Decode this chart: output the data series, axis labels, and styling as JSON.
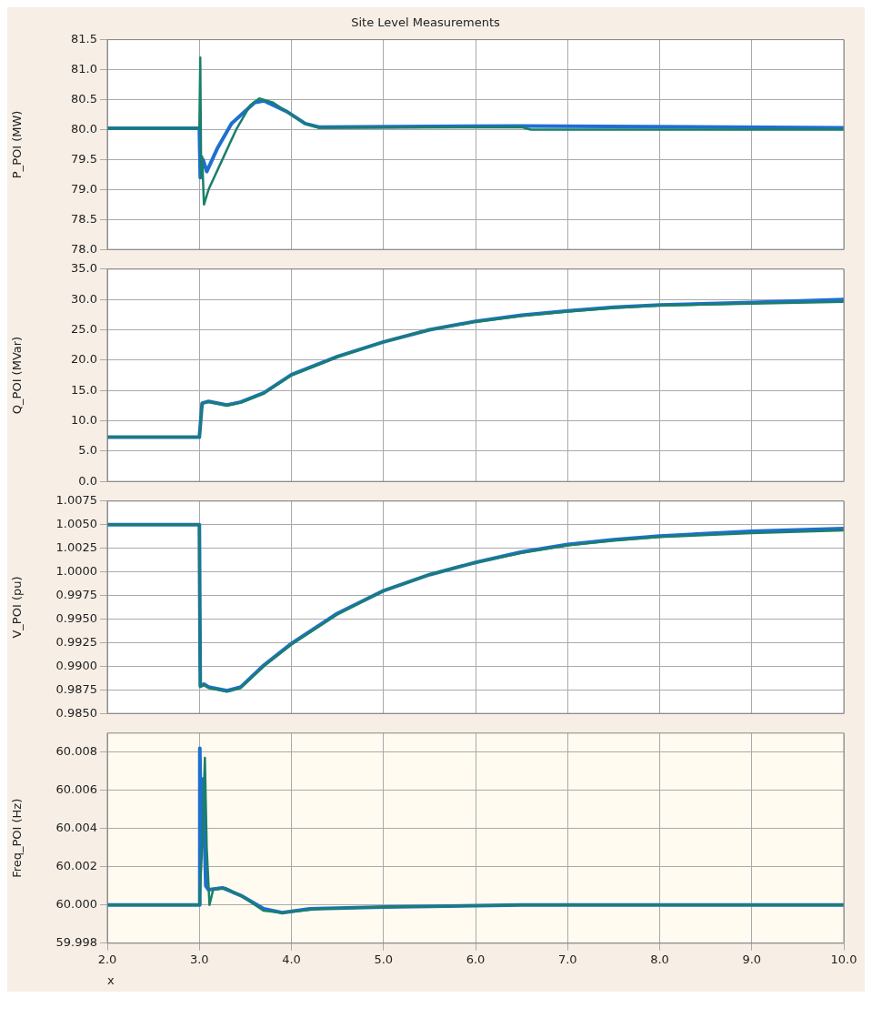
{
  "chart_data": [
    {
      "type": "line",
      "title": "Site Level Measurements",
      "ylabel": "P_POI (MW)",
      "xlim": [
        2,
        10
      ],
      "xticks": [
        {
          "value": 2,
          "label": null
        },
        {
          "value": 3,
          "label": null
        },
        {
          "value": 4,
          "label": null
        },
        {
          "value": 5,
          "label": null
        },
        {
          "value": 6,
          "label": null
        },
        {
          "value": 7,
          "label": null
        },
        {
          "value": 8,
          "label": null
        },
        {
          "value": 9,
          "label": null
        },
        {
          "value": 10,
          "label": null
        }
      ],
      "ylim": [
        78,
        81.5
      ],
      "yticks": [
        {
          "value": 78,
          "label": "78.0"
        },
        {
          "value": 78.5,
          "label": "78.5"
        },
        {
          "value": 79,
          "label": "79.0"
        },
        {
          "value": 79.5,
          "label": "79.5"
        },
        {
          "value": 80,
          "label": "80.0"
        },
        {
          "value": 80.5,
          "label": "80.5"
        },
        {
          "value": 81,
          "label": "81.0"
        },
        {
          "value": 81.5,
          "label": "81.5"
        }
      ],
      "grid": true,
      "tick_labels": "y",
      "legend": false,
      "marker": "none",
      "line_style": "solid",
      "series": [
        {
          "color": "#1f6fd1",
          "x": [
            2,
            3,
            3.01,
            3.04,
            3.08,
            3.2,
            3.35,
            3.6,
            3.7,
            3.95,
            4.15,
            4.3,
            6.5,
            10
          ],
          "values": [
            80.02,
            80.02,
            79.2,
            79.5,
            79.3,
            79.7,
            80.1,
            80.45,
            80.48,
            80.3,
            80.1,
            80.04,
            80.06,
            80.03
          ]
        },
        {
          "color": "#1a7f6a",
          "x": [
            2,
            3,
            3.01,
            3.02,
            3.03,
            3.05,
            3.1,
            3.25,
            3.4,
            3.55,
            3.65,
            3.8,
            4,
            4.15,
            4.3,
            6.5,
            6.6,
            10
          ],
          "values": [
            80.02,
            80.02,
            81.2,
            79.2,
            79.55,
            78.75,
            79,
            79.5,
            80,
            80.4,
            80.52,
            80.45,
            80.25,
            80.1,
            80.03,
            80.04,
            80,
            80
          ]
        }
      ]
    },
    {
      "type": "line",
      "ylabel": "Q_POI (MVar)",
      "xlim": [
        2,
        10
      ],
      "xticks": [
        {
          "value": 2,
          "label": null
        },
        {
          "value": 3,
          "label": null
        },
        {
          "value": 4,
          "label": null
        },
        {
          "value": 5,
          "label": null
        },
        {
          "value": 6,
          "label": null
        },
        {
          "value": 7,
          "label": null
        },
        {
          "value": 8,
          "label": null
        },
        {
          "value": 9,
          "label": null
        },
        {
          "value": 10,
          "label": null
        }
      ],
      "ylim": [
        0,
        35
      ],
      "yticks": [
        {
          "value": 0,
          "label": "0.0"
        },
        {
          "value": 5,
          "label": "5.0"
        },
        {
          "value": 10,
          "label": "10.0"
        },
        {
          "value": 15,
          "label": "15.0"
        },
        {
          "value": 20,
          "label": "20.0"
        },
        {
          "value": 25,
          "label": "25.0"
        },
        {
          "value": 30,
          "label": "30.0"
        },
        {
          "value": 35,
          "label": "35.0"
        }
      ],
      "grid": true,
      "tick_labels": "y",
      "legend": false,
      "marker": "none",
      "line_style": "solid",
      "series": [
        {
          "color": "#1f6fd1",
          "x": [
            2,
            3,
            3.03,
            3.1,
            3.3,
            3.45,
            3.7,
            4,
            4.5,
            5,
            5.5,
            6,
            6.5,
            7,
            7.5,
            8,
            9,
            10
          ],
          "values": [
            7.3,
            7.3,
            12.9,
            13.2,
            12.6,
            13.1,
            14.6,
            17.6,
            20.6,
            23,
            25,
            26.4,
            27.4,
            28.1,
            28.7,
            29.1,
            29.5,
            30
          ]
        },
        {
          "color": "#1a7f6a",
          "x": [
            2,
            3,
            3.03,
            3.1,
            3.3,
            3.45,
            3.7,
            4,
            4.5,
            5,
            5.5,
            6,
            6.5,
            7,
            7.5,
            8,
            9,
            10
          ],
          "values": [
            7.3,
            7.3,
            12.8,
            13.1,
            12.5,
            13,
            14.5,
            17.5,
            20.5,
            23,
            25,
            26.3,
            27.3,
            28,
            28.6,
            29,
            29.3,
            29.6
          ]
        }
      ]
    },
    {
      "type": "line",
      "ylabel": "V_POI (pu)",
      "xlim": [
        2,
        10
      ],
      "xticks": [
        {
          "value": 2,
          "label": null
        },
        {
          "value": 3,
          "label": null
        },
        {
          "value": 4,
          "label": null
        },
        {
          "value": 5,
          "label": null
        },
        {
          "value": 6,
          "label": null
        },
        {
          "value": 7,
          "label": null
        },
        {
          "value": 8,
          "label": null
        },
        {
          "value": 9,
          "label": null
        },
        {
          "value": 10,
          "label": null
        }
      ],
      "ylim": [
        0.985,
        1.0075
      ],
      "yticks": [
        {
          "value": 0.985,
          "label": "0.9850"
        },
        {
          "value": 0.9875,
          "label": "0.9875"
        },
        {
          "value": 0.99,
          "label": "0.9900"
        },
        {
          "value": 0.9925,
          "label": "0.9925"
        },
        {
          "value": 0.995,
          "label": "0.9950"
        },
        {
          "value": 0.9975,
          "label": "0.9975"
        },
        {
          "value": 1,
          "label": "1.0000"
        },
        {
          "value": 1.0025,
          "label": "1.0025"
        },
        {
          "value": 1.005,
          "label": "1.0050"
        },
        {
          "value": 1.0075,
          "label": "1.0075"
        }
      ],
      "grid": true,
      "tick_labels": "y",
      "legend": false,
      "marker": "none",
      "line_style": "solid",
      "series": [
        {
          "color": "#1f6fd1",
          "x": [
            2,
            3,
            3.01,
            3.05,
            3.1,
            3.3,
            3.45,
            3.7,
            4,
            4.5,
            5,
            5.5,
            6,
            6.5,
            7,
            7.5,
            8,
            9,
            10
          ],
          "values": [
            1.005,
            1.005,
            0.9879,
            0.9881,
            0.9878,
            0.9874,
            0.9878,
            0.9901,
            0.9924,
            0.9956,
            0.998,
            0.9997,
            1.001,
            1.0021,
            1.0029,
            1.0034,
            1.0038,
            1.0043,
            1.0046
          ]
        },
        {
          "color": "#1a7f6a",
          "x": [
            2,
            3,
            3.01,
            3.05,
            3.1,
            3.3,
            3.45,
            3.7,
            4,
            4.5,
            5,
            5.5,
            6,
            6.5,
            7,
            7.5,
            8,
            9,
            10
          ],
          "values": [
            1.005,
            1.005,
            0.9878,
            0.988,
            0.9877,
            0.9873,
            0.9877,
            0.99,
            0.9923,
            0.9955,
            0.998,
            0.9997,
            1.001,
            1.002,
            1.0028,
            1.0033,
            1.0037,
            1.0041,
            1.0044
          ]
        }
      ]
    },
    {
      "type": "line",
      "ylabel": "Freq_POI (Hz)",
      "xlabel": "x",
      "xlim": [
        2,
        10
      ],
      "xticks": [
        {
          "value": 2,
          "label": "2.0"
        },
        {
          "value": 3,
          "label": "3.0"
        },
        {
          "value": 4,
          "label": "4.0"
        },
        {
          "value": 5,
          "label": "5.0"
        },
        {
          "value": 6,
          "label": "6.0"
        },
        {
          "value": 7,
          "label": "7.0"
        },
        {
          "value": 8,
          "label": "8.0"
        },
        {
          "value": 9,
          "label": "9.0"
        },
        {
          "value": 10,
          "label": "10.0"
        }
      ],
      "ylim": [
        59.998,
        60.009
      ],
      "yticks": [
        59.998,
        {
          "value": 60,
          "label": "60.000"
        },
        60.002,
        60.004,
        60.006,
        60.008
      ],
      "grid": true,
      "legend": false,
      "marker": "none",
      "line_style": "solid",
      "series": [
        {
          "color": "#1f6fd1",
          "x": [
            2,
            3,
            3.005,
            3.02,
            3.04,
            3.07,
            3.1,
            3.25,
            3.45,
            3.7,
            3.9,
            4.2,
            5,
            6.5,
            10
          ],
          "values": [
            60,
            60,
            60.0082,
            60.003,
            60.0066,
            60.001,
            60.0008,
            60.0009,
            60.0005,
            59.9998,
            59.9996,
            59.9998,
            59.9999,
            60,
            60
          ]
        },
        {
          "color": "#1a7f6a",
          "x": [
            2,
            3,
            3.03,
            3.06,
            3.08,
            3.11,
            3.15,
            3.28,
            3.45,
            3.7,
            3.9,
            4.3,
            5,
            6.5,
            10
          ],
          "values": [
            60,
            60,
            60.003,
            60.0077,
            60.003,
            60,
            60.0008,
            60.0009,
            60.0005,
            59.9997,
            59.9996,
            59.9998,
            59.9999,
            60,
            60
          ]
        }
      ]
    }
  ]
}
